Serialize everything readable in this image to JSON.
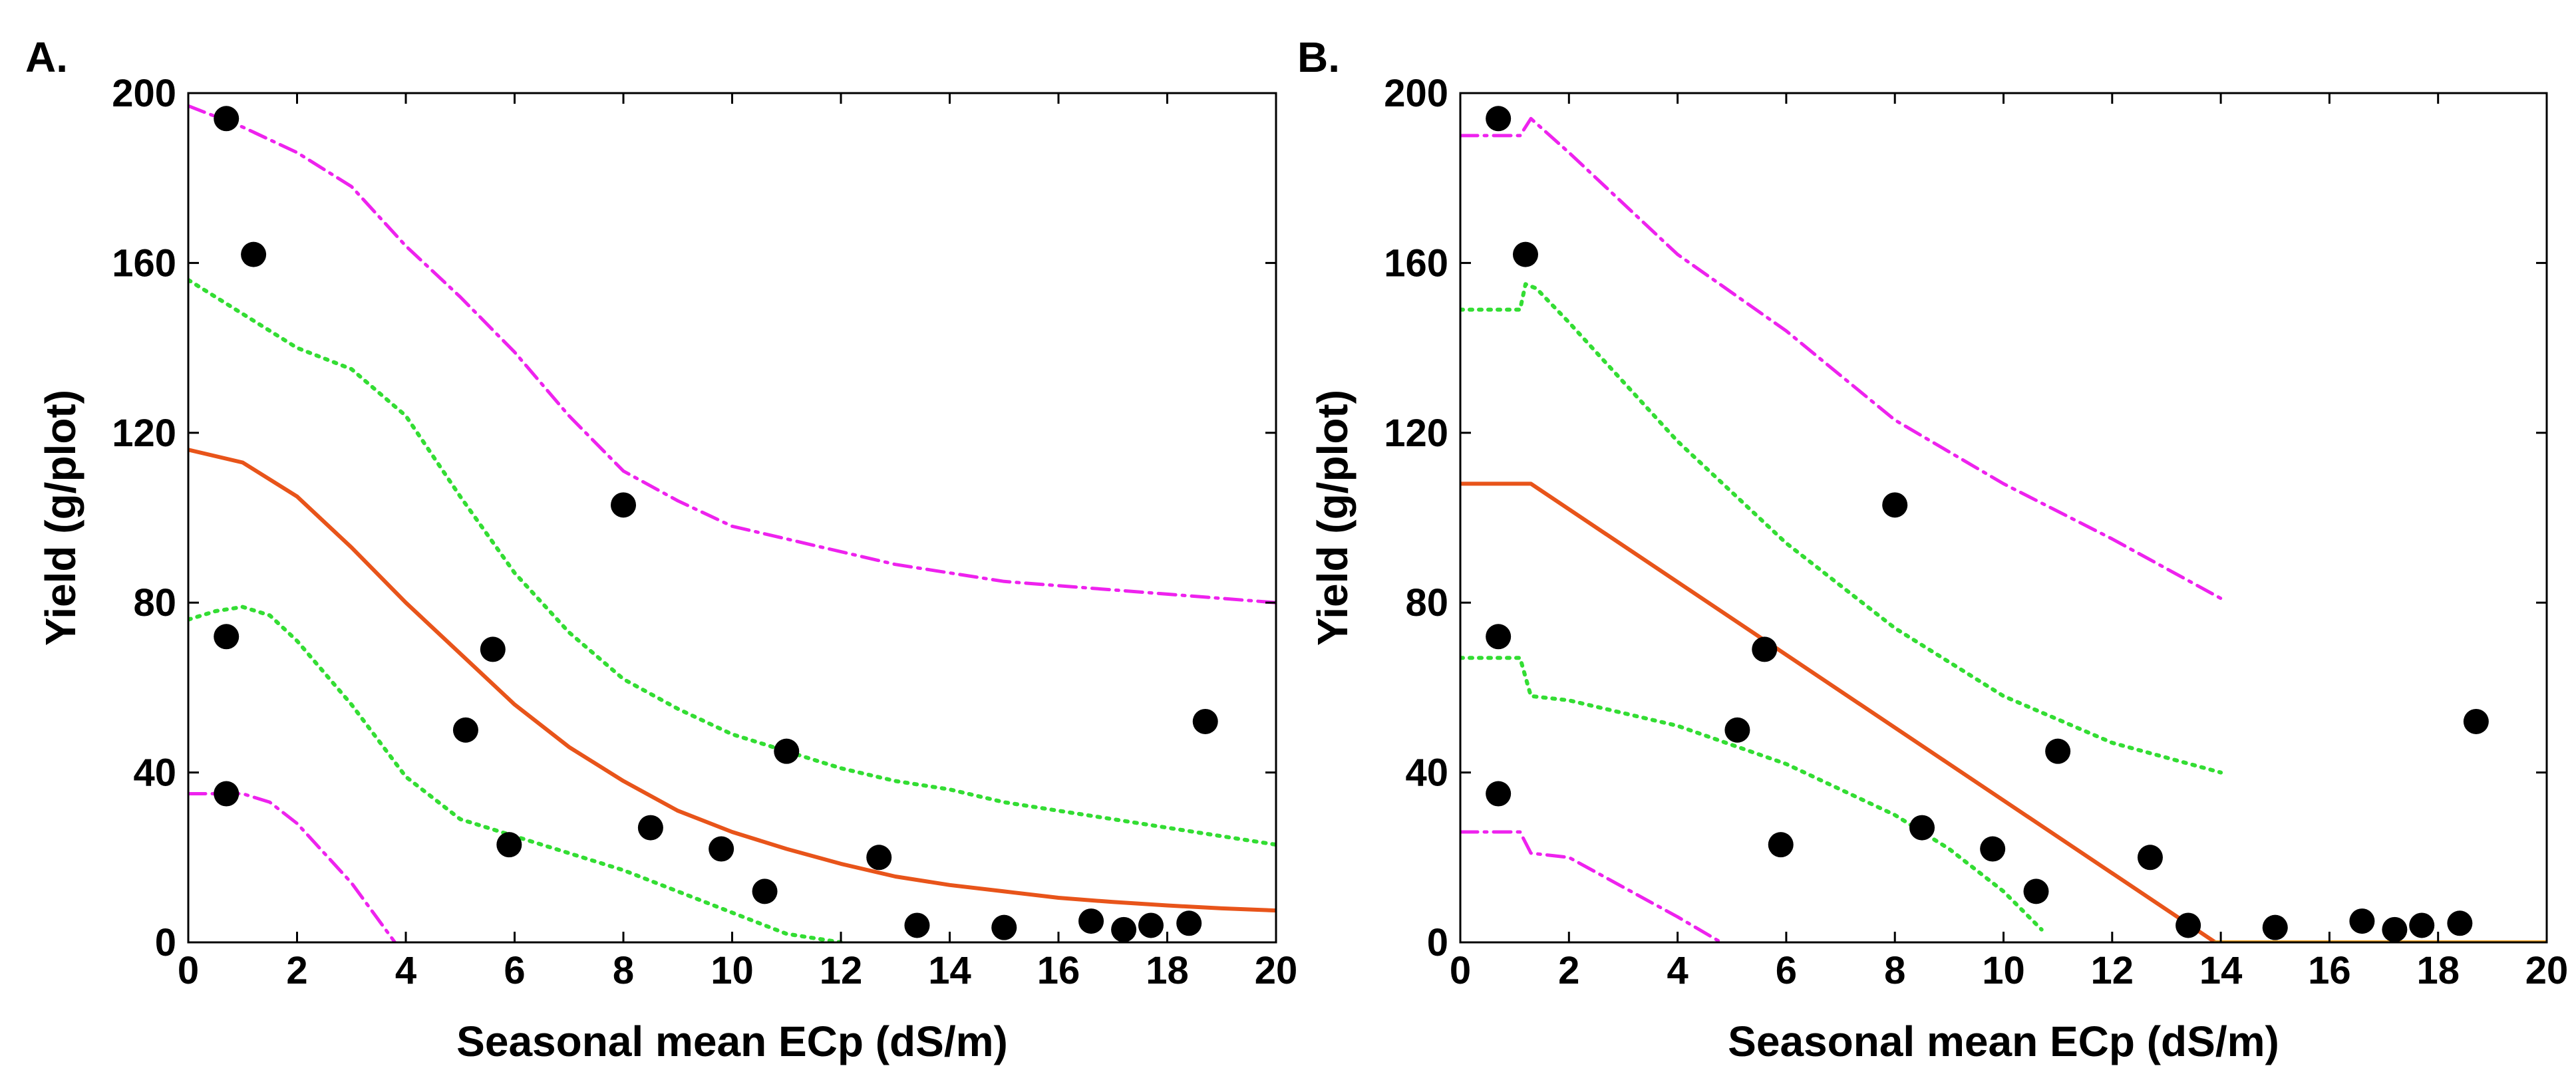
{
  "chart_data": [
    {
      "type": "scatter",
      "panel_label": "A.",
      "xlabel": "Seasonal mean ECp (dS/m)",
      "ylabel": "Yield (g/plot)",
      "xlim": [
        0,
        20
      ],
      "ylim": [
        0,
        200
      ],
      "xticks": [
        0,
        2,
        4,
        6,
        8,
        10,
        12,
        14,
        16,
        18,
        20
      ],
      "yticks": [
        0,
        40,
        80,
        120,
        160,
        200
      ],
      "colors": {
        "fit": "#e8541a",
        "inner_band": "#33dd33",
        "outer_band": "#ee22ee",
        "points": "#000000"
      },
      "points": [
        [
          0.7,
          194
        ],
        [
          1.2,
          162
        ],
        [
          0.7,
          72
        ],
        [
          0.7,
          35
        ],
        [
          5.1,
          50
        ],
        [
          5.6,
          69
        ],
        [
          5.9,
          23
        ],
        [
          8.0,
          103
        ],
        [
          8.5,
          27
        ],
        [
          9.8,
          22
        ],
        [
          10.6,
          12
        ],
        [
          11.0,
          45
        ],
        [
          12.7,
          20
        ],
        [
          13.4,
          4
        ],
        [
          15.0,
          3.5
        ],
        [
          16.6,
          5
        ],
        [
          17.2,
          3
        ],
        [
          17.7,
          4
        ],
        [
          18.4,
          4.5
        ],
        [
          18.7,
          52
        ]
      ],
      "series": [
        {
          "name": "fit",
          "style": "solid",
          "x": [
            0,
            1,
            2,
            3,
            4,
            5,
            6,
            7,
            8,
            9,
            10,
            11,
            12,
            13,
            14,
            15,
            16,
            17,
            18,
            19,
            20
          ],
          "y": [
            116,
            113,
            105,
            93,
            80,
            68,
            56,
            46,
            38,
            31,
            26,
            22,
            18.5,
            15.5,
            13.5,
            12,
            10.5,
            9.5,
            8.7,
            8,
            7.5
          ]
        },
        {
          "name": "upper 95% CI",
          "style": "dotted",
          "x": [
            0,
            1,
            2,
            3,
            4,
            5,
            6,
            7,
            8,
            9,
            10,
            11,
            12,
            13,
            14,
            15,
            16,
            17,
            18,
            19,
            20
          ],
          "y": [
            156,
            148,
            140,
            135,
            124,
            105,
            87,
            73,
            62,
            55,
            49,
            45,
            41,
            38,
            36,
            33,
            31,
            29,
            27,
            25,
            23
          ]
        },
        {
          "name": "lower 95% CI",
          "style": "dotted",
          "x": [
            0,
            0.5,
            1,
            1.5,
            2,
            3,
            4,
            5,
            6,
            7,
            8,
            9,
            10,
            11,
            12
          ],
          "y": [
            76,
            78,
            79,
            77,
            71,
            56,
            39,
            29,
            25,
            21,
            17,
            12,
            7,
            2,
            0
          ]
        },
        {
          "name": "upper prediction limit",
          "style": "dashdot",
          "x": [
            0,
            1,
            2,
            3,
            4,
            5,
            6,
            7,
            8,
            9,
            10,
            11,
            12,
            13,
            14,
            15,
            16,
            17,
            18,
            19,
            20
          ],
          "y": [
            197,
            192,
            186,
            178,
            164,
            152,
            139,
            124,
            111,
            104,
            98,
            95,
            92,
            89,
            87,
            85,
            84,
            83,
            82,
            81,
            80
          ]
        },
        {
          "name": "lower prediction limit",
          "style": "dashdot",
          "x": [
            0,
            0.5,
            1,
            1.5,
            2,
            3,
            3.8
          ],
          "y": [
            35,
            35,
            35,
            33,
            28,
            14,
            0
          ]
        }
      ]
    },
    {
      "type": "scatter",
      "panel_label": "B.",
      "xlabel": "Seasonal mean ECp (dS/m)",
      "ylabel": "Yield (g/plot)",
      "xlim": [
        0,
        20
      ],
      "ylim": [
        0,
        200
      ],
      "xticks": [
        0,
        2,
        4,
        6,
        8,
        10,
        12,
        14,
        16,
        18,
        20
      ],
      "yticks": [
        0,
        40,
        80,
        120,
        160,
        200
      ],
      "colors": {
        "fit": "#e8541a",
        "zero_line": "#f5a623",
        "inner_band": "#33dd33",
        "outer_band": "#ee22ee",
        "points": "#000000"
      },
      "points": [
        [
          0.7,
          194
        ],
        [
          1.2,
          162
        ],
        [
          0.7,
          72
        ],
        [
          0.7,
          35
        ],
        [
          5.1,
          50
        ],
        [
          5.6,
          69
        ],
        [
          5.9,
          23
        ],
        [
          8.0,
          103
        ],
        [
          8.5,
          27
        ],
        [
          9.8,
          22
        ],
        [
          10.6,
          12
        ],
        [
          11.0,
          45
        ],
        [
          12.7,
          20
        ],
        [
          13.4,
          4
        ],
        [
          15.0,
          3.5
        ],
        [
          16.6,
          5
        ],
        [
          17.2,
          3
        ],
        [
          17.7,
          4
        ],
        [
          18.4,
          4.5
        ],
        [
          18.7,
          52
        ]
      ],
      "series": [
        {
          "name": "fit",
          "style": "solid",
          "x": [
            0,
            1.3,
            13.9
          ],
          "y": [
            108,
            108,
            0
          ]
        },
        {
          "name": "zero yield",
          "style": "solid",
          "x": [
            13.9,
            20
          ],
          "y": [
            0,
            0
          ]
        },
        {
          "name": "upper 95% CI",
          "style": "dotted",
          "x": [
            0,
            1.1,
            1.2,
            1.4,
            2,
            4,
            6,
            8,
            10,
            12,
            14
          ],
          "y": [
            149,
            149,
            155,
            154,
            146,
            118,
            94,
            74,
            58,
            47,
            40
          ]
        },
        {
          "name": "lower 95% CI",
          "style": "dotted",
          "x": [
            0,
            1.1,
            1.3,
            2,
            4,
            6,
            8,
            9,
            10,
            10.7
          ],
          "y": [
            67,
            67,
            58,
            57,
            51,
            42,
            30,
            22,
            12,
            3
          ]
        },
        {
          "name": "upper prediction limit",
          "style": "dashdot",
          "x": [
            0,
            1.1,
            1.3,
            2,
            4,
            6,
            8,
            10,
            12,
            14
          ],
          "y": [
            190,
            190,
            194,
            186,
            162,
            144,
            123,
            108,
            95,
            81
          ]
        },
        {
          "name": "lower prediction limit",
          "style": "dashdot",
          "x": [
            0,
            1.1,
            1.3,
            2,
            3,
            4,
            4.8
          ],
          "y": [
            26,
            26,
            21,
            20,
            13,
            6,
            0
          ]
        }
      ]
    }
  ]
}
